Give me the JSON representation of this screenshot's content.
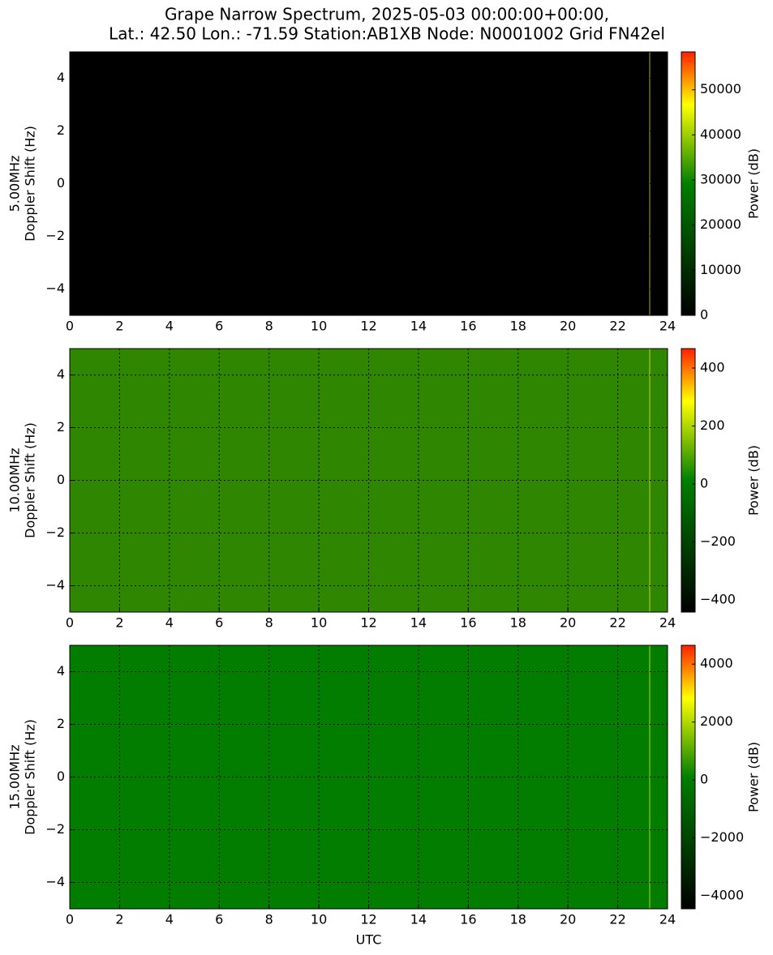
{
  "title_lines": [
    "Grape Narrow Spectrum, 2025-05-03 00:00:00+00:00,",
    "Lat.: 42.50 Lon.: -71.59 Station:AB1XB Node: N0001002 Grid FN42el"
  ],
  "chart_data": [
    {
      "type": "spectrogram",
      "ylabel": [
        "5.00MHz",
        "Doppler Shift (Hz)"
      ],
      "colorbar_label": "Power (dB)",
      "color": "#000000",
      "grid": true,
      "xlim": [
        0,
        24
      ],
      "xticks": [
        0,
        2,
        4,
        6,
        8,
        10,
        12,
        14,
        16,
        18,
        20,
        22,
        24
      ],
      "ylim": [
        -5,
        5
      ],
      "yticks": [
        {
          "value": -4,
          "label": "−4"
        },
        {
          "value": -2,
          "label": "−2"
        },
        0,
        2,
        4
      ],
      "clim": [
        0,
        58400
      ],
      "cticks": [
        0,
        10000,
        20000,
        30000,
        40000,
        50000
      ],
      "colormap": [
        "#000000",
        "#008000",
        "#ffff00",
        "#ff2000"
      ]
    },
    {
      "type": "spectrogram",
      "ylabel": [
        "10.00MHz",
        "Doppler Shift (Hz)"
      ],
      "colorbar_label": "Power (dB)",
      "color": "#2f8600",
      "grid": true,
      "xlim": [
        0,
        24
      ],
      "xticks": [
        0,
        2,
        4,
        6,
        8,
        10,
        12,
        14,
        16,
        18,
        20,
        22,
        24
      ],
      "ylim": [
        -5,
        5
      ],
      "yticks": [
        {
          "value": -4,
          "label": "−4"
        },
        {
          "value": -2,
          "label": "−2"
        },
        0,
        2,
        4
      ],
      "clim": [
        -442,
        467
      ],
      "cticks": [
        {
          "value": -400,
          "label": "−400"
        },
        {
          "value": -200,
          "label": "−200"
        },
        0,
        200,
        400
      ],
      "colormap": [
        "#000000",
        "#008000",
        "#ffff00",
        "#ff2000"
      ]
    },
    {
      "type": "spectrogram",
      "ylabel": [
        "15.00MHz",
        "Doppler Shift (Hz)"
      ],
      "colorbar_label": "Power (dB)",
      "xlabel": "UTC",
      "color": "#037d00",
      "grid": true,
      "xlim": [
        0,
        24
      ],
      "xticks": [
        0,
        2,
        4,
        6,
        8,
        10,
        12,
        14,
        16,
        18,
        20,
        22,
        24
      ],
      "ylim": [
        -5,
        5
      ],
      "yticks": [
        {
          "value": -4,
          "label": "−4"
        },
        {
          "value": -2,
          "label": "−2"
        },
        0,
        2,
        4
      ],
      "clim": [
        -4450,
        4650
      ],
      "cticks": [
        {
          "value": -4000,
          "label": "−4000"
        },
        {
          "value": -2000,
          "label": "−2000"
        },
        0,
        2000,
        4000
      ],
      "colormap": [
        "#000000",
        "#008000",
        "#ffff00",
        "#ff2000"
      ]
    }
  ]
}
